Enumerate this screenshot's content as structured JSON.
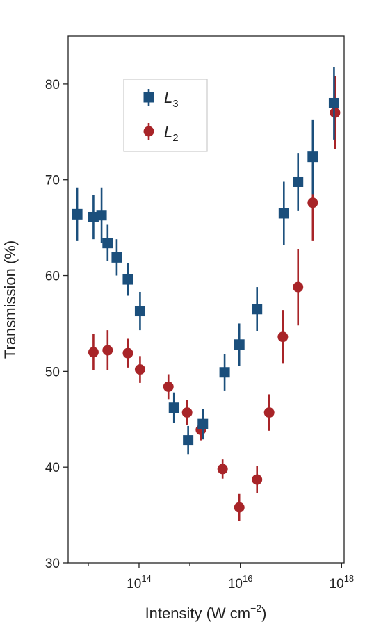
{
  "chart_data": {
    "type": "scatter",
    "xlabel": "Intensity (W cm",
    "xlabel_exp": "−2",
    "xlabel_close": ")",
    "ylabel": "Transmission (%)",
    "xscale": "log",
    "xlim_exp": [
      12.6,
      18.05
    ],
    "ylim": [
      30,
      85
    ],
    "yticks": [
      "30",
      "40",
      "50",
      "60",
      "70",
      "80"
    ],
    "xticks": [
      {
        "base": "10",
        "exp": "14",
        "value_exp": 14
      },
      {
        "base": "10",
        "exp": "16",
        "value_exp": 16
      },
      {
        "base": "10",
        "exp": "18",
        "value_exp": 18
      }
    ],
    "legend_position": "top-left",
    "grid": false,
    "series": [
      {
        "name": "L",
        "subscript": "3",
        "marker": "square",
        "color": "#1b4f7c",
        "points": [
          {
            "x_exp": 12.78,
            "y": 66.4,
            "err": 2.8
          },
          {
            "x_exp": 13.1,
            "y": 66.1,
            "err": 2.3
          },
          {
            "x_exp": 13.26,
            "y": 66.3,
            "err": 2.9
          },
          {
            "x_exp": 13.38,
            "y": 63.4,
            "err": 1.9
          },
          {
            "x_exp": 13.56,
            "y": 61.9,
            "err": 1.9
          },
          {
            "x_exp": 13.78,
            "y": 59.6,
            "err": 1.7
          },
          {
            "x_exp": 14.02,
            "y": 56.3,
            "err": 2.0
          },
          {
            "x_exp": 14.69,
            "y": 46.2,
            "err": 1.6
          },
          {
            "x_exp": 14.97,
            "y": 42.8,
            "err": 1.5
          },
          {
            "x_exp": 15.26,
            "y": 44.5,
            "err": 1.6
          },
          {
            "x_exp": 15.69,
            "y": 49.9,
            "err": 1.9
          },
          {
            "x_exp": 15.98,
            "y": 52.8,
            "err": 2.2
          },
          {
            "x_exp": 16.33,
            "y": 56.5,
            "err": 2.3
          },
          {
            "x_exp": 16.86,
            "y": 66.5,
            "err": 3.3
          },
          {
            "x_exp": 17.14,
            "y": 69.8,
            "err": 3.0
          },
          {
            "x_exp": 17.43,
            "y": 72.4,
            "err": 3.9
          },
          {
            "x_exp": 17.85,
            "y": 78.0,
            "err": 3.8
          }
        ]
      },
      {
        "name": "L",
        "subscript": "2",
        "marker": "circle",
        "color": "#a82428",
        "points": [
          {
            "x_exp": 13.1,
            "y": 52.0,
            "err": 1.9
          },
          {
            "x_exp": 13.38,
            "y": 52.2,
            "err": 2.1
          },
          {
            "x_exp": 13.78,
            "y": 51.9,
            "err": 1.5
          },
          {
            "x_exp": 14.02,
            "y": 50.2,
            "err": 1.4
          },
          {
            "x_exp": 14.58,
            "y": 48.4,
            "err": 1.3
          },
          {
            "x_exp": 14.95,
            "y": 45.7,
            "err": 1.3
          },
          {
            "x_exp": 15.22,
            "y": 43.9,
            "err": 1.1
          },
          {
            "x_exp": 15.65,
            "y": 39.8,
            "err": 1.0
          },
          {
            "x_exp": 15.98,
            "y": 35.8,
            "err": 1.4
          },
          {
            "x_exp": 16.33,
            "y": 38.7,
            "err": 1.4
          },
          {
            "x_exp": 16.57,
            "y": 45.7,
            "err": 1.9
          },
          {
            "x_exp": 16.84,
            "y": 53.6,
            "err": 2.8
          },
          {
            "x_exp": 17.14,
            "y": 58.8,
            "err": 4.0
          },
          {
            "x_exp": 17.43,
            "y": 67.6,
            "err": 4.0
          },
          {
            "x_exp": 17.87,
            "y": 77.0,
            "err": 3.8
          }
        ]
      }
    ]
  }
}
